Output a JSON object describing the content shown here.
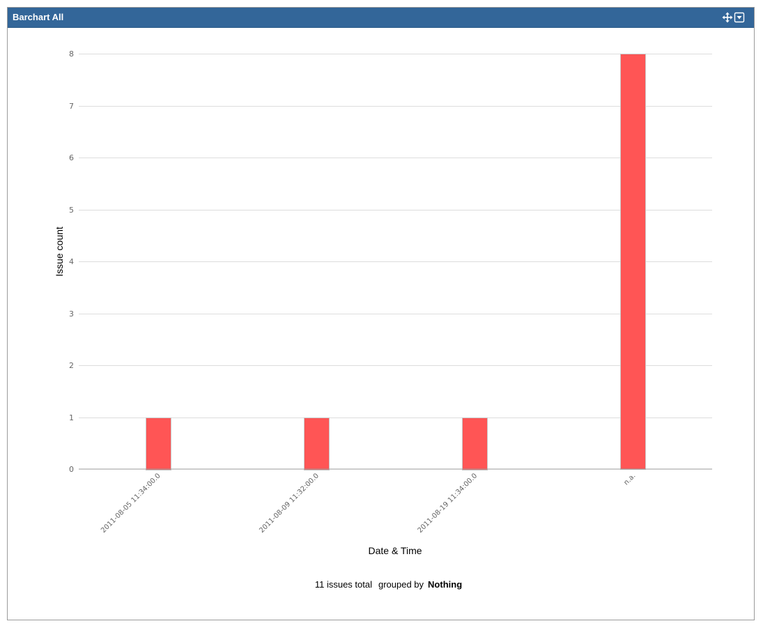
{
  "gadget": {
    "title": "Barchart All",
    "icons": [
      "move-icon",
      "dropdown-menu-icon"
    ],
    "header_color": "#336699"
  },
  "chart_data": {
    "type": "bar",
    "categories": [
      "2011-08-05 11:34:00.0",
      "2011-08-09 11:32:00.0",
      "2011-08-19 11:34:00.0",
      "n.a."
    ],
    "values": [
      1,
      1,
      1,
      8
    ],
    "xlabel": "Date & Time",
    "ylabel": "Issue count",
    "ylim": [
      0,
      8
    ],
    "yticks": [
      0,
      1,
      2,
      3,
      4,
      5,
      6,
      7,
      8
    ],
    "grid": true,
    "bar_color": "#ff5555"
  },
  "summary": {
    "total": "11 issues total",
    "grouped_by_label": "grouped by",
    "grouped_by_value": "Nothing"
  }
}
